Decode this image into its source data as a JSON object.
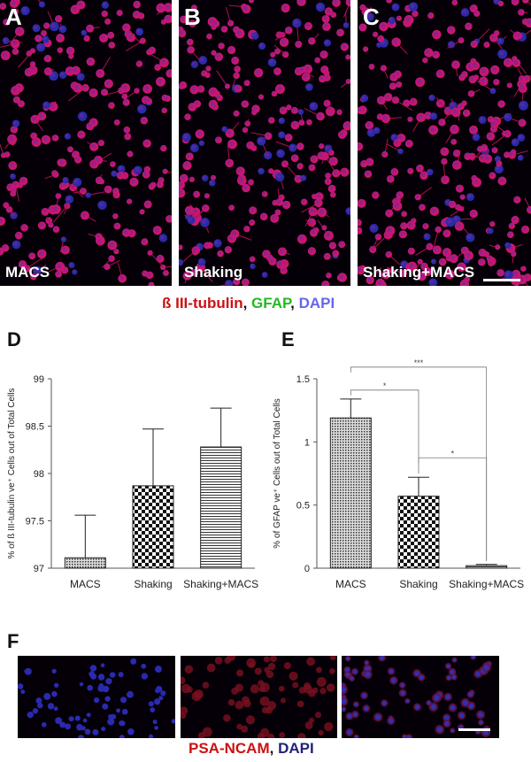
{
  "figure": {
    "panels_top": [
      {
        "letter": "A",
        "label": "MACS"
      },
      {
        "letter": "B",
        "label": "Shaking"
      },
      {
        "letter": "C",
        "label": "Shaking+MACS"
      }
    ],
    "legend_top": [
      {
        "text": "ß III-tubulin",
        "color": "#cc1111"
      },
      {
        "text": ", ",
        "color": "#111111"
      },
      {
        "text": "GFAP",
        "color": "#22bb22"
      },
      {
        "text": ", ",
        "color": "#111111"
      },
      {
        "text": "DAPI",
        "color": "#6666ee"
      }
    ],
    "panel_F": {
      "letter": "F"
    },
    "legend_bottom": [
      {
        "text": "PSA-NCAM",
        "color": "#cc1111"
      },
      {
        "text": ", ",
        "color": "#111111"
      },
      {
        "text": "DAPI",
        "color": "#22227a"
      }
    ]
  },
  "chart_data": [
    {
      "letter": "D",
      "type": "bar",
      "categories": [
        "MACS",
        "Shaking",
        "Shaking+MACS"
      ],
      "values": [
        97.11,
        97.87,
        98.28
      ],
      "errors": [
        0.45,
        0.6,
        0.41
      ],
      "ylabel": "% of ß III-tubulin ve⁺ Cells out of Total Cells",
      "ylim": [
        97,
        99
      ],
      "yticks": [
        "97",
        "97.5",
        "98",
        "98.5",
        "99"
      ],
      "patterns": [
        "dots",
        "checker",
        "hlines"
      ],
      "significance": []
    },
    {
      "letter": "E",
      "type": "bar",
      "categories": [
        "MACS",
        "Shaking",
        "Shaking+MACS"
      ],
      "values": [
        1.19,
        0.57,
        0.02
      ],
      "errors": [
        0.15,
        0.15,
        0.01
      ],
      "ylabel": "% of GFAP ve⁺ Cells out of Total Cells",
      "ylim": [
        0,
        1.5
      ],
      "yticks": [
        "0",
        "0.5",
        "1",
        "1.5"
      ],
      "patterns": [
        "dots",
        "checker",
        "hlines"
      ],
      "significance": [
        {
          "from": 0,
          "to": 1,
          "label": "*"
        },
        {
          "from": 0,
          "to": 2,
          "label": "***"
        },
        {
          "from": 1,
          "to": 2,
          "label": "*"
        }
      ]
    }
  ]
}
